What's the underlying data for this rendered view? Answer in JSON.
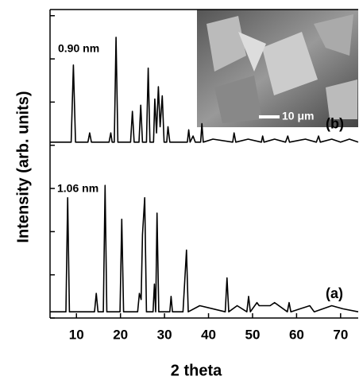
{
  "chart_data": {
    "type": "line",
    "x_label": "2 theta",
    "y_label": "Intensity (arb. units)",
    "xlim": [
      4,
      74
    ],
    "xticks": [
      10,
      20,
      30,
      40,
      50,
      60,
      70
    ],
    "ylim": [
      0,
      100
    ],
    "yticks": [
      0,
      14,
      28,
      42,
      56,
      70,
      84,
      98
    ],
    "ytick_labels": false,
    "annotations": [
      "0.90 nm",
      "1.06 nm"
    ],
    "inset_scale": "10 μm",
    "series": [
      {
        "name": "(a)",
        "color": "#000000",
        "x": [
          4,
          7.6,
          8.0,
          8.4,
          14.1,
          14.5,
          14.9,
          16.1,
          16.5,
          16.9,
          19.9,
          20.3,
          20.7,
          23.9,
          24.3,
          24.7,
          25.0,
          25.5,
          25.9,
          27.4,
          27.7,
          28.0,
          28.3,
          28.7,
          31.2,
          31.5,
          31.8,
          34.2,
          34.6,
          35.0,
          35.4,
          38,
          43.8,
          44.2,
          44.6,
          46.5,
          48.7,
          49.1,
          49.5,
          51,
          51.5,
          54,
          55,
          57.9,
          58.3,
          58.7,
          63,
          64,
          68,
          70.5,
          74
        ],
        "values": [
          2,
          2,
          39,
          2,
          2,
          8,
          2,
          2,
          43,
          2,
          2,
          32,
          2,
          2,
          8,
          6,
          27,
          39,
          2,
          2,
          11,
          2,
          34,
          2,
          2,
          7,
          2,
          2,
          12,
          22,
          2,
          4,
          2,
          13,
          2,
          4,
          2,
          7,
          2,
          5,
          4,
          4,
          5,
          2,
          5,
          2,
          4,
          2,
          4,
          3,
          2
        ]
      },
      {
        "name": "(b)",
        "color": "#000000",
        "x": [
          4,
          8.8,
          9.3,
          9.8,
          12.6,
          13.0,
          13.4,
          17.4,
          17.8,
          18.1,
          18.6,
          19.0,
          19.4,
          22.3,
          22.7,
          23.1,
          24.2,
          24.6,
          25.0,
          25.9,
          26.3,
          26.7,
          27.5,
          27.8,
          28.2,
          28.6,
          29.0,
          29.5,
          29.9,
          30.5,
          30.8,
          31.2,
          35.2,
          35.5,
          35.8,
          36.5,
          37,
          38.2,
          38.5,
          38.8,
          41,
          45.5,
          45.8,
          46.2,
          49,
          52,
          52.3,
          52.6,
          55,
          57.5,
          58,
          58.4,
          62,
          64.5,
          65,
          65.4,
          68,
          70,
          72,
          74
        ],
        "values": [
          57,
          57,
          82,
          57,
          57,
          60,
          57,
          57,
          60,
          57,
          57,
          91,
          57,
          57,
          67,
          57,
          57,
          69,
          57,
          57,
          81,
          57,
          57,
          71,
          60,
          75,
          62,
          72,
          57,
          57,
          62,
          57,
          57,
          61,
          57,
          59,
          57,
          57,
          63,
          57,
          58,
          57,
          60,
          57,
          58,
          57,
          59,
          57,
          58,
          57,
          59,
          57,
          58,
          57,
          59,
          57,
          58,
          57,
          58,
          57
        ]
      }
    ]
  }
}
